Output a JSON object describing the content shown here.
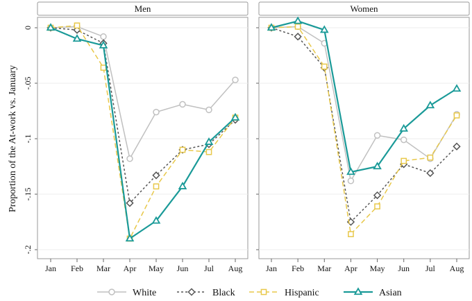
{
  "chart_data": {
    "type": "line",
    "ylabel": "Proportion of the At-work vs. January",
    "categories": [
      "Jan",
      "Feb",
      "Mar",
      "Apr",
      "May",
      "Jun",
      "Jul",
      "Aug"
    ],
    "ylim": [
      -0.2,
      0
    ],
    "yticks": [
      0,
      -0.05,
      -0.1,
      -0.15,
      -0.2
    ],
    "ytick_labels": [
      "0",
      "-.05",
      "-.1",
      "-.15",
      "-.2"
    ],
    "legend_position": "bottom",
    "grid": "horizontal-light",
    "series_styles": {
      "White": {
        "color": "#c0c0c0",
        "dash": "solid",
        "marker": "circle"
      },
      "Black": {
        "color": "#555555",
        "dash": "dotted",
        "marker": "diamond"
      },
      "Hispanic": {
        "color": "#e8c84a",
        "dash": "dashed",
        "marker": "square"
      },
      "Asian": {
        "color": "#1a9a98",
        "dash": "solid",
        "marker": "triangle"
      }
    },
    "panels": [
      {
        "title": "Men",
        "series": [
          {
            "name": "White",
            "values": [
              0,
              0.001,
              -0.008,
              -0.118,
              -0.076,
              -0.069,
              -0.074,
              -0.047
            ]
          },
          {
            "name": "Black",
            "values": [
              0,
              -0.002,
              -0.014,
              -0.158,
              -0.133,
              -0.11,
              -0.105,
              -0.083
            ]
          },
          {
            "name": "Hispanic",
            "values": [
              0,
              0.002,
              -0.036,
              -0.19,
              -0.143,
              -0.11,
              -0.112,
              -0.081
            ]
          },
          {
            "name": "Asian",
            "values": [
              0,
              -0.01,
              -0.016,
              -0.19,
              -0.174,
              -0.143,
              -0.103,
              -0.081
            ]
          }
        ]
      },
      {
        "title": "Women",
        "series": [
          {
            "name": "White",
            "values": [
              0,
              0.001,
              -0.014,
              -0.138,
              -0.097,
              -0.101,
              -0.118,
              -0.078
            ]
          },
          {
            "name": "Black",
            "values": [
              0,
              -0.008,
              -0.036,
              -0.175,
              -0.151,
              -0.123,
              -0.131,
              -0.107
            ]
          },
          {
            "name": "Hispanic",
            "values": [
              0,
              0.001,
              -0.035,
              -0.186,
              -0.161,
              -0.12,
              -0.117,
              -0.079
            ]
          },
          {
            "name": "Asian",
            "values": [
              0,
              0.006,
              -0.002,
              -0.13,
              -0.125,
              -0.091,
              -0.07,
              -0.055
            ]
          }
        ]
      }
    ]
  }
}
